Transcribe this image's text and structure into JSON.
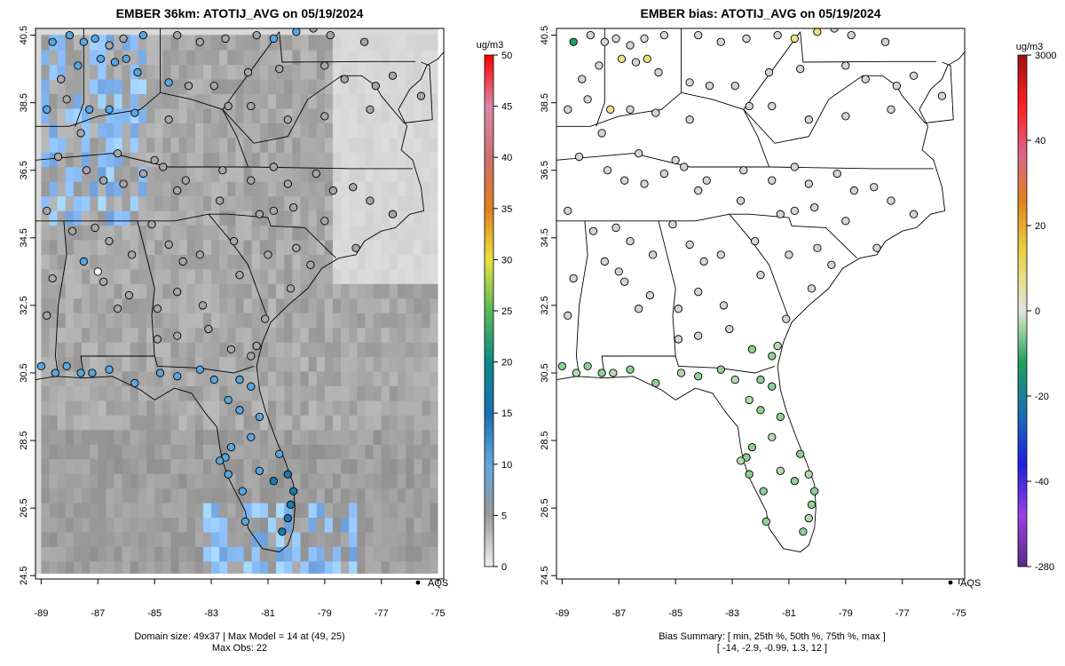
{
  "panels": {
    "left": {
      "title": "EMBER 36km: ATOTIJ_AVG on 05/19/2024",
      "footer_line1": "Domain size: 49x37 | Max Model = 14 at (49, 25)",
      "footer_line2": "Max Obs: 22",
      "legend_label": "AQS",
      "colorbar_unit": "ug/m3",
      "colorbar_ticks": [
        "0",
        "5",
        "10",
        "15",
        "20",
        "25",
        "30",
        "35",
        "40",
        "45",
        "50"
      ]
    },
    "right": {
      "title": "EMBER bias: ATOTIJ_AVG on 05/19/2024",
      "footer_line1": "Bias Summary: [ min, 25th %, 50th %, 75th %, max ]",
      "footer_line2": "[ -14,   -2.9,   -0.99,   1.3,   12 ]",
      "legend_label": "AQS",
      "colorbar_unit": "ug/m3",
      "colorbar_ticks": [
        "-280",
        "-40",
        "-20",
        "0",
        "20",
        "40",
        "3000"
      ]
    }
  },
  "colors": {
    "model_gray_light": "#e4e4e4",
    "model_gray_dark": "#9a9a9a",
    "model_blue": "#62a6dc",
    "obs_blue": "#3a9ad8",
    "bias_green": "#8fd19a",
    "bias_neutral": "#d7d7d7",
    "bias_yellow": "#f0e060"
  },
  "chart_data": [
    {
      "type": "heatmap",
      "title": "EMBER 36km: ATOTIJ_AVG on 05/19/2024",
      "xlabel": "",
      "ylabel": "",
      "x_ticks": [
        "-89",
        "-87",
        "-85",
        "-83",
        "-81",
        "-79",
        "-77",
        "-75"
      ],
      "y_ticks": [
        "24.5",
        "26.5",
        "28.5",
        "30.5",
        "32.5",
        "34.5",
        "36.5",
        "38.5",
        "40.5"
      ],
      "xlim": [
        -89.2,
        -74.8
      ],
      "ylim": [
        24.4,
        40.7
      ],
      "colorbar_range": [
        0,
        50
      ],
      "colorbar_unit": "ug/m3",
      "domain_size": "49x37",
      "max_model": 14,
      "max_obs": 22,
      "obs_sites_sample": [
        {
          "lon": -88.6,
          "lat": 40.3,
          "value": 22
        },
        {
          "lon": -80.1,
          "lat": 27.0,
          "value": 16
        },
        {
          "lon": -80.3,
          "lat": 27.5,
          "value": 14
        },
        {
          "lon": -81.8,
          "lat": 28.8,
          "value": 11
        },
        {
          "lon": -82.7,
          "lat": 31.0,
          "value": 10
        },
        {
          "lon": -84.2,
          "lat": 36.1,
          "value": 3
        }
      ]
    },
    {
      "type": "scatter",
      "title": "EMBER bias: ATOTIJ_AVG on 05/19/2024",
      "x_ticks": [
        "-89",
        "-87",
        "-85",
        "-83",
        "-81",
        "-79",
        "-77",
        "-75"
      ],
      "y_ticks": [
        "24.5",
        "26.5",
        "28.5",
        "30.5",
        "32.5",
        "34.5",
        "36.5",
        "38.5",
        "40.5"
      ],
      "xlim": [
        -89.2,
        -74.8
      ],
      "ylim": [
        24.4,
        40.7
      ],
      "colorbar_unit": "ug/m3",
      "colorbar_tick_labels": [
        "-280",
        "-40",
        "-20",
        "0",
        "20",
        "40",
        "3000"
      ],
      "bias_summary": {
        "min": -14,
        "p25": -2.9,
        "median": -0.99,
        "p75": 1.3,
        "max": 12
      },
      "sites_sample": [
        {
          "lon": -80.1,
          "lat": 27.0,
          "bias": -3.5
        },
        {
          "lon": -86.8,
          "lat": 39.6,
          "bias": 8
        },
        {
          "lon": -79.9,
          "lat": 40.7,
          "bias": 12
        },
        {
          "lon": -88.6,
          "lat": 40.3,
          "bias": -14
        },
        {
          "lon": -83.0,
          "lat": 36.1,
          "bias": 0.5
        }
      ]
    }
  ]
}
